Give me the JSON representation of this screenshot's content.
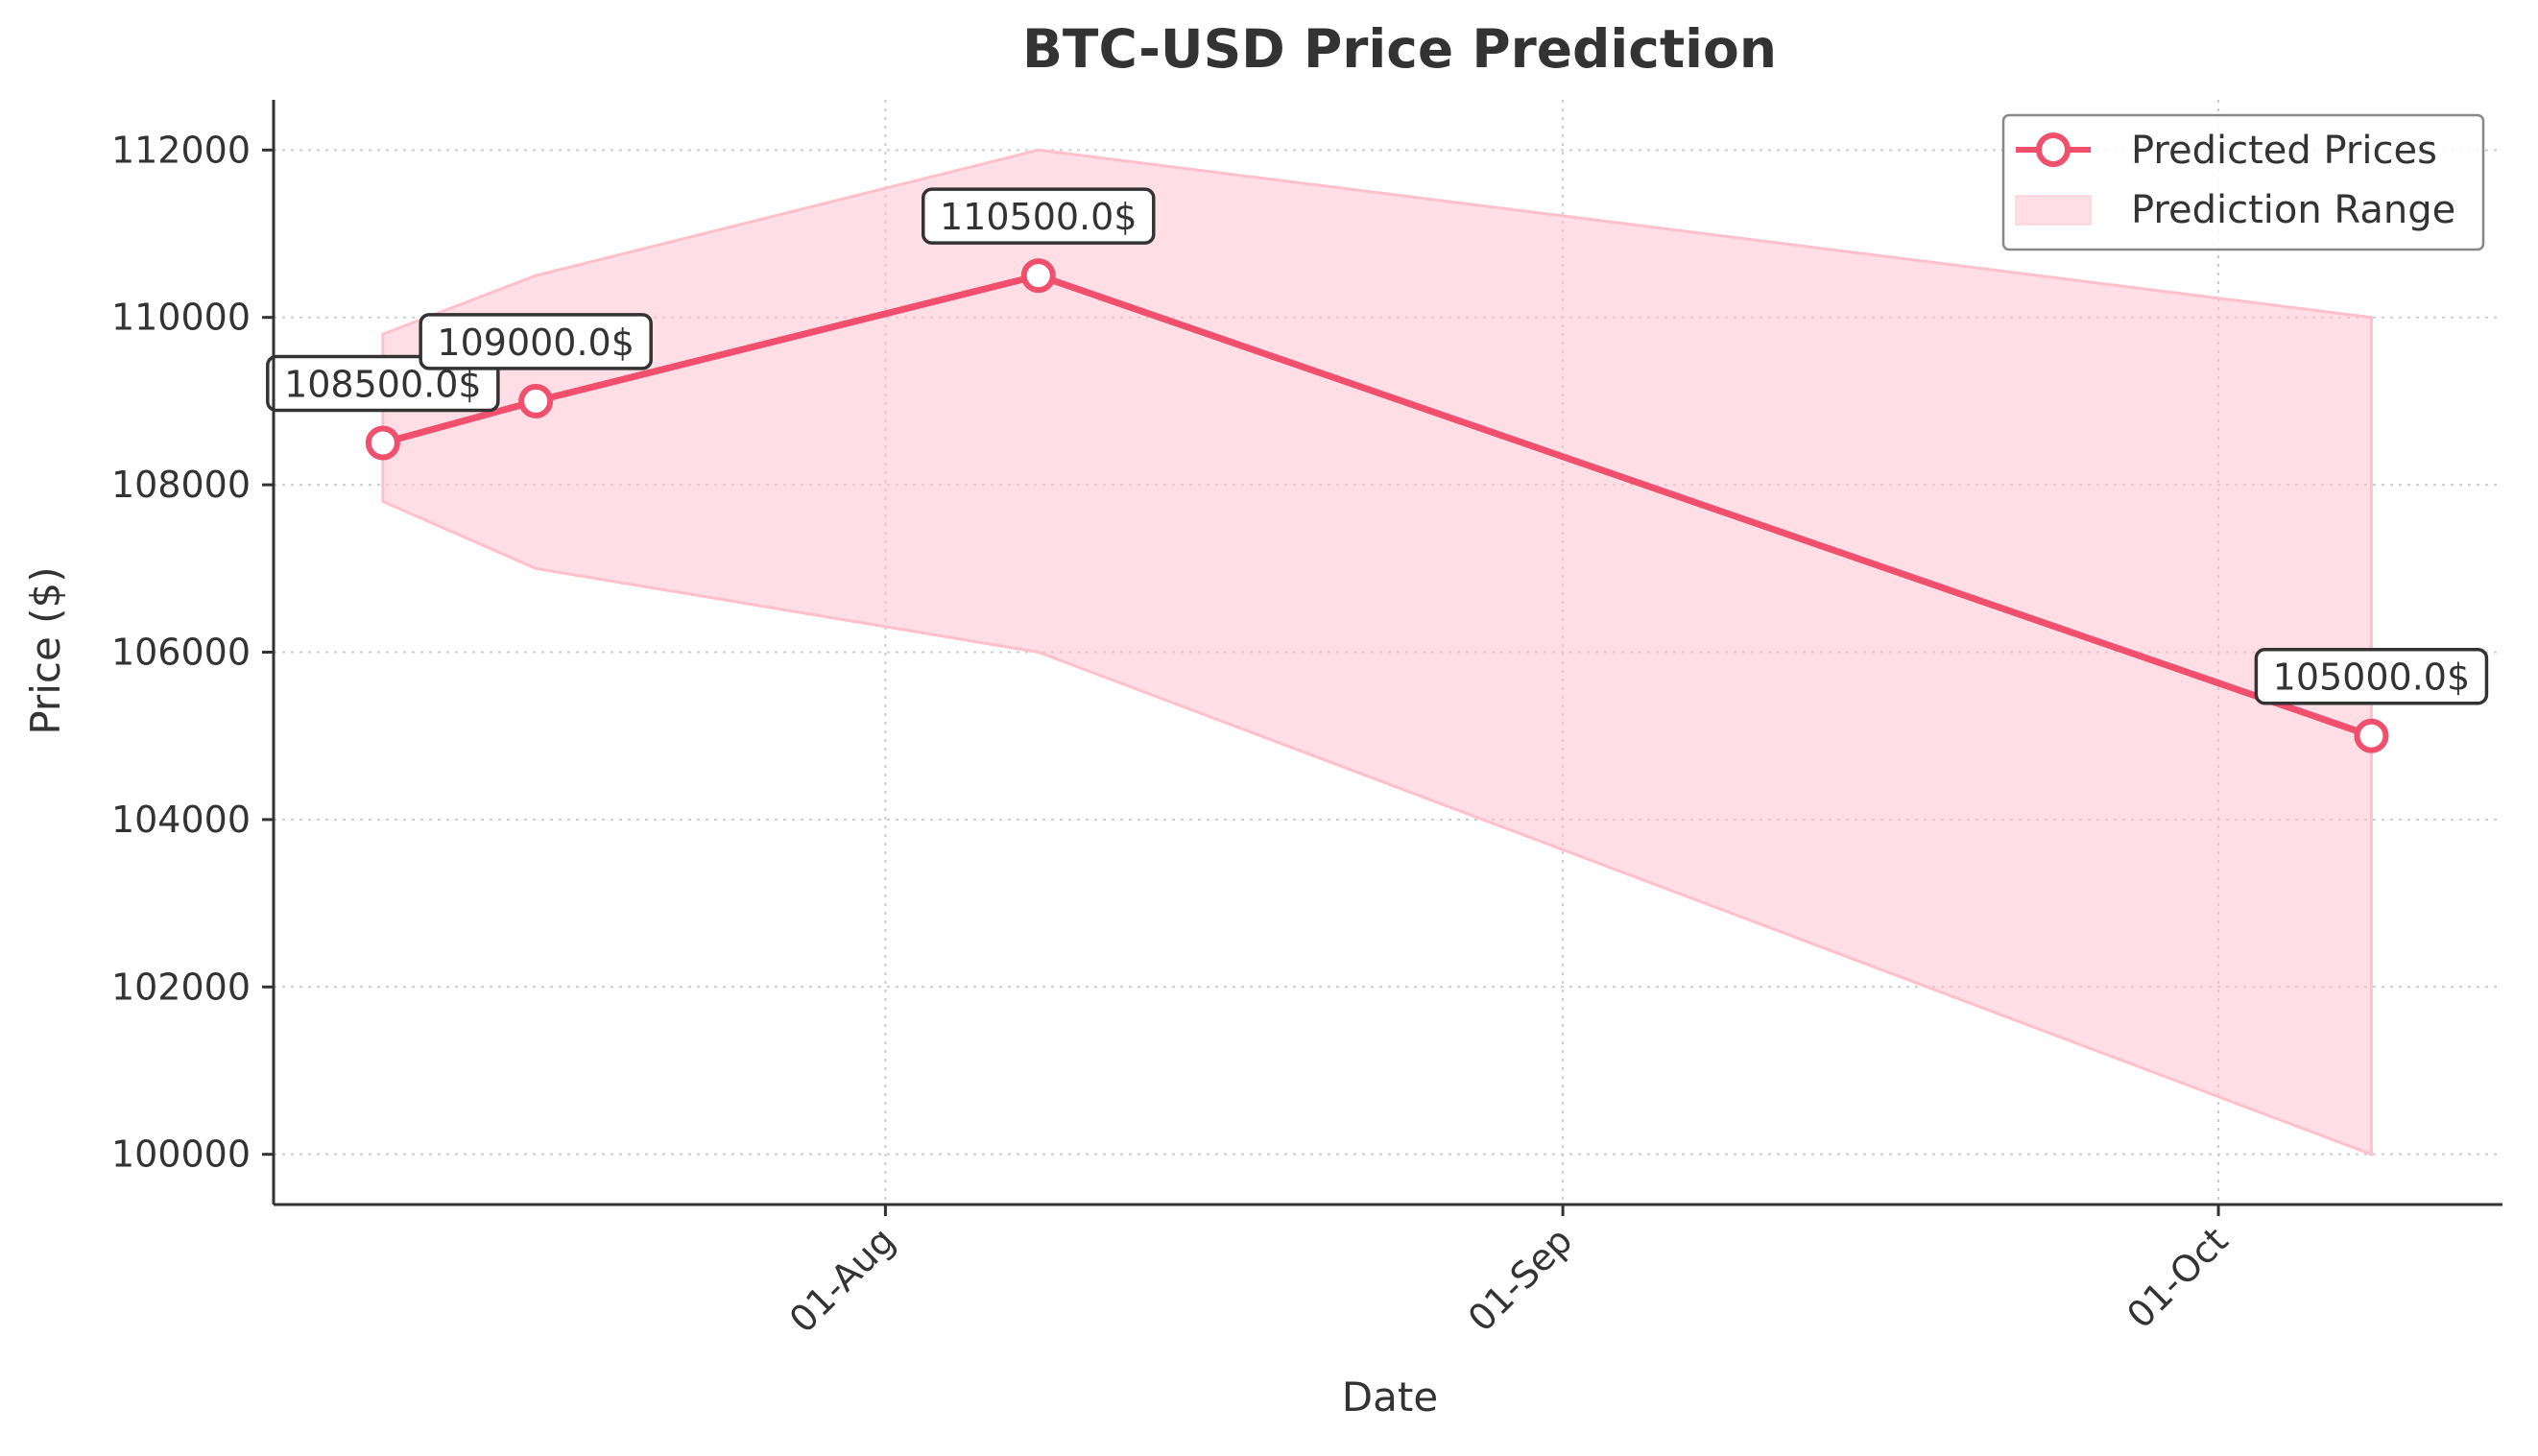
{
  "chart_data": {
    "type": "line",
    "title": "BTC-USD Price Prediction",
    "xlabel": "Date",
    "ylabel": "Price ($)",
    "x_tick_labels": [
      {
        "label": "01-Aug",
        "date": "2025-08-01"
      },
      {
        "label": "01-Sep",
        "date": "2025-09-01"
      },
      {
        "label": "01-Oct",
        "date": "2025-10-01"
      }
    ],
    "y_ticks": [
      100000,
      102000,
      104000,
      106000,
      108000,
      110000,
      112000
    ],
    "xlim": [
      "2025-07-04",
      "2025-10-14"
    ],
    "ylim": [
      99400,
      112600
    ],
    "grid": true,
    "legend_position": "top-right",
    "colors": {
      "line": "#f0506e",
      "band_fill": "#ffc0cb",
      "axes": "#333333",
      "grid": "#cccccc"
    },
    "series": [
      {
        "name": "Predicted Prices",
        "x": [
          "2025-07-09",
          "2025-07-16",
          "2025-08-08",
          "2025-10-08"
        ],
        "y": [
          108500,
          109000,
          110500,
          105000
        ],
        "labels": [
          "108500.0$",
          "109000.0$",
          "110500.0$",
          "105000.0$"
        ]
      }
    ],
    "range": {
      "name": "Prediction Range",
      "x": [
        "2025-07-09",
        "2025-07-16",
        "2025-08-08",
        "2025-10-08"
      ],
      "lower": [
        107800,
        107000,
        106000,
        100000
      ],
      "upper": [
        109800,
        110500,
        112000,
        110000
      ]
    }
  }
}
